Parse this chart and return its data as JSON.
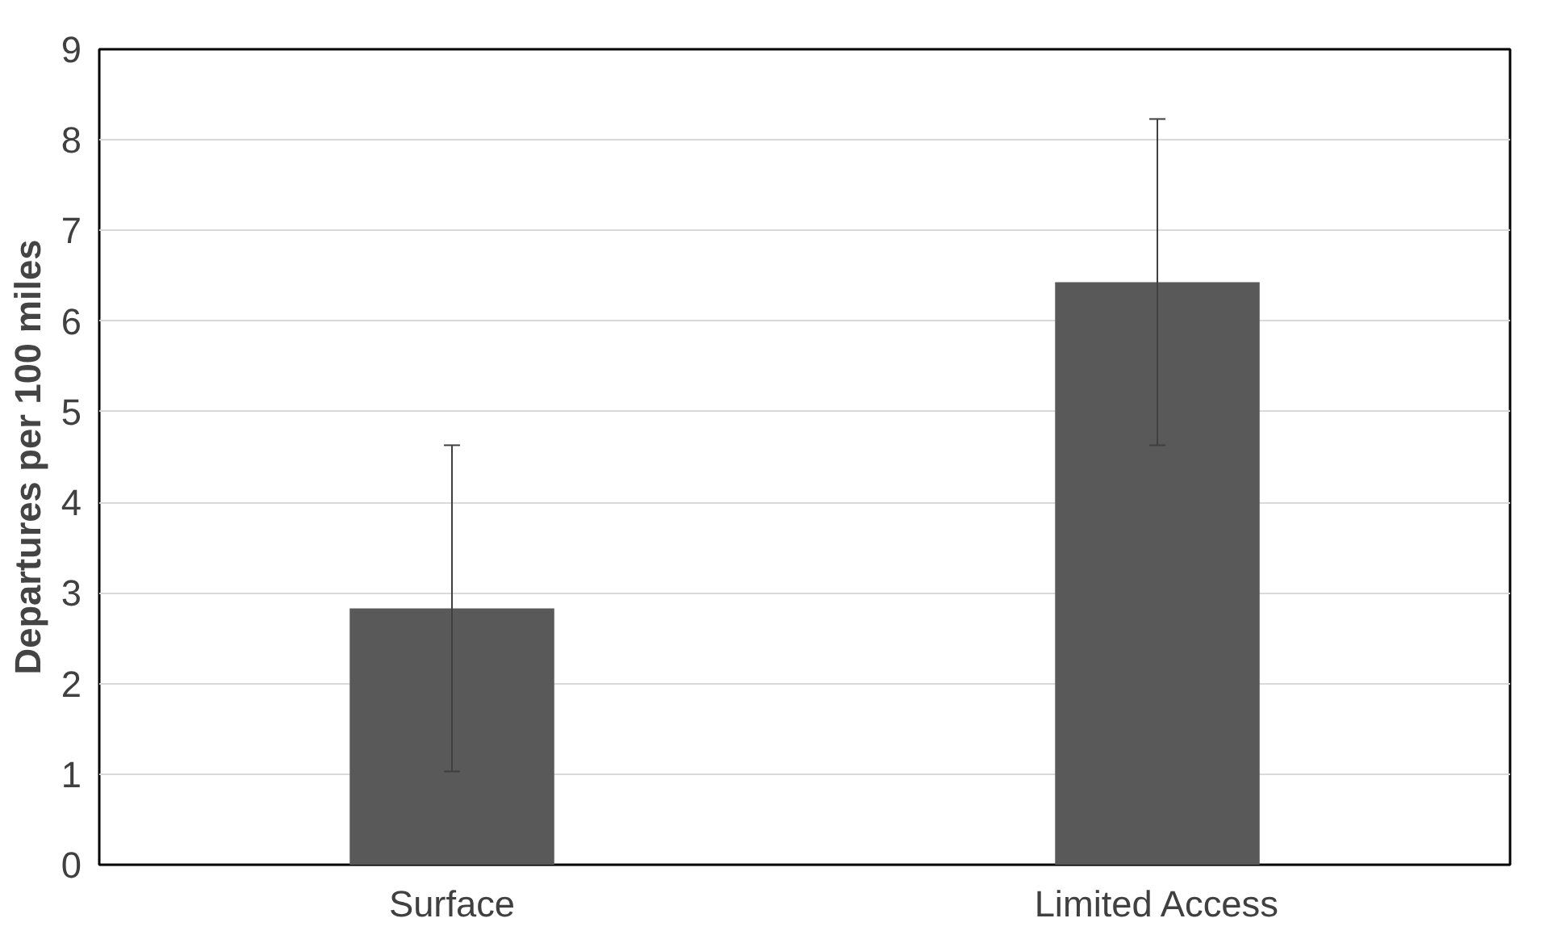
{
  "chart_data": {
    "type": "bar",
    "ylabel": "Departures per 100 miles",
    "categories": [
      "Surface",
      "Limited Access"
    ],
    "values": [
      2.83,
      6.43
    ],
    "errors": [
      1.8,
      1.8
    ],
    "color": "#595959",
    "ylim": [
      0,
      9
    ],
    "yticks": [
      0,
      1,
      2,
      3,
      4,
      5,
      6,
      7,
      8,
      9
    ],
    "grid": "y"
  }
}
